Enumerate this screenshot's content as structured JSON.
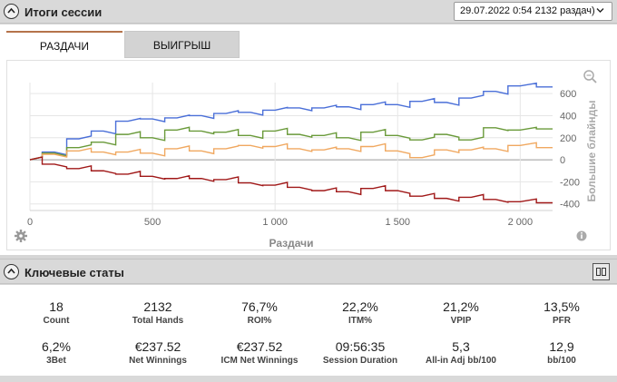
{
  "session_summary": {
    "title": "Итоги сессии",
    "selected_session": "29.07.2022 0:54 2132 раздач)"
  },
  "tabs": [
    {
      "label": "РАЗДАЧИ",
      "active": true
    },
    {
      "label": "ВЫИГРЫШ",
      "active": false
    }
  ],
  "chart_data": {
    "type": "line",
    "xlabel": "Раздачи",
    "ylabel": "Большие блайнды",
    "x_ticks": [
      "0",
      "500",
      "1 000",
      "1 500",
      "2 000"
    ],
    "y_ticks": [
      "600",
      "400",
      "200",
      "0",
      "-200",
      "-400"
    ],
    "xlim": [
      0,
      2132
    ],
    "ylim": [
      -460,
      700
    ],
    "grid": true,
    "series": [
      {
        "color": "#4a6fd8",
        "x": [
          0,
          100,
          200,
          300,
          400,
          500,
          600,
          700,
          800,
          900,
          1000,
          1100,
          1200,
          1300,
          1400,
          1500,
          1600,
          1700,
          1800,
          1900,
          2000,
          2132
        ],
        "y": [
          0,
          70,
          190,
          260,
          350,
          370,
          380,
          400,
          420,
          430,
          450,
          470,
          470,
          480,
          500,
          500,
          530,
          520,
          560,
          620,
          670,
          660
        ]
      },
      {
        "color": "#6a9a3a",
        "x": [
          0,
          100,
          200,
          300,
          400,
          500,
          600,
          700,
          800,
          900,
          1000,
          1100,
          1200,
          1300,
          1400,
          1500,
          1600,
          1700,
          1800,
          1900,
          2000,
          2132
        ],
        "y": [
          0,
          60,
          110,
          160,
          230,
          200,
          270,
          260,
          250,
          220,
          260,
          230,
          220,
          200,
          250,
          220,
          180,
          230,
          180,
          290,
          270,
          280
        ]
      },
      {
        "color": "#f0a860",
        "x": [
          0,
          100,
          200,
          300,
          400,
          500,
          600,
          700,
          800,
          900,
          1000,
          1100,
          1200,
          1300,
          1400,
          1500,
          1600,
          1700,
          1800,
          1900,
          2000,
          2132
        ],
        "y": [
          0,
          50,
          80,
          70,
          70,
          60,
          100,
          80,
          100,
          130,
          120,
          100,
          90,
          100,
          120,
          80,
          20,
          90,
          90,
          100,
          130,
          110
        ]
      },
      {
        "color": "#a01818",
        "x": [
          0,
          100,
          200,
          300,
          400,
          500,
          600,
          700,
          800,
          900,
          1000,
          1100,
          1200,
          1300,
          1400,
          1500,
          1600,
          1700,
          1800,
          1900,
          2000,
          2132
        ],
        "y": [
          0,
          -40,
          -80,
          -100,
          -130,
          -150,
          -170,
          -170,
          -180,
          -210,
          -230,
          -250,
          -280,
          -290,
          -260,
          -280,
          -330,
          -350,
          -340,
          -360,
          -380,
          -390
        ]
      }
    ]
  },
  "key_stats": {
    "title": "Ключевые статы",
    "items": [
      {
        "value": "18",
        "label": "Count"
      },
      {
        "value": "2132",
        "label": "Total Hands"
      },
      {
        "value": "76,7%",
        "label": "ROI%"
      },
      {
        "value": "22,2%",
        "label": "ITM%"
      },
      {
        "value": "21,2%",
        "label": "VPIP"
      },
      {
        "value": "13,5%",
        "label": "PFR"
      },
      {
        "value": "6,2%",
        "label": "3Bet"
      },
      {
        "value": "€237.52",
        "label": "Net Winnings"
      },
      {
        "value": "€237.52",
        "label": "ICM Net Winnings"
      },
      {
        "value": "09:56:35",
        "label": "Session Duration"
      },
      {
        "value": "5,3",
        "label": "All-in Adj bb/100"
      },
      {
        "value": "12,9",
        "label": "bb/100"
      }
    ]
  },
  "icons": {
    "collapse": "chevron-up-icon",
    "dropdown": "chevron-down-icon",
    "zoom": "zoom-icon",
    "settings": "gear-icon",
    "info": "info-icon",
    "layout": "layout-columns-icon"
  }
}
